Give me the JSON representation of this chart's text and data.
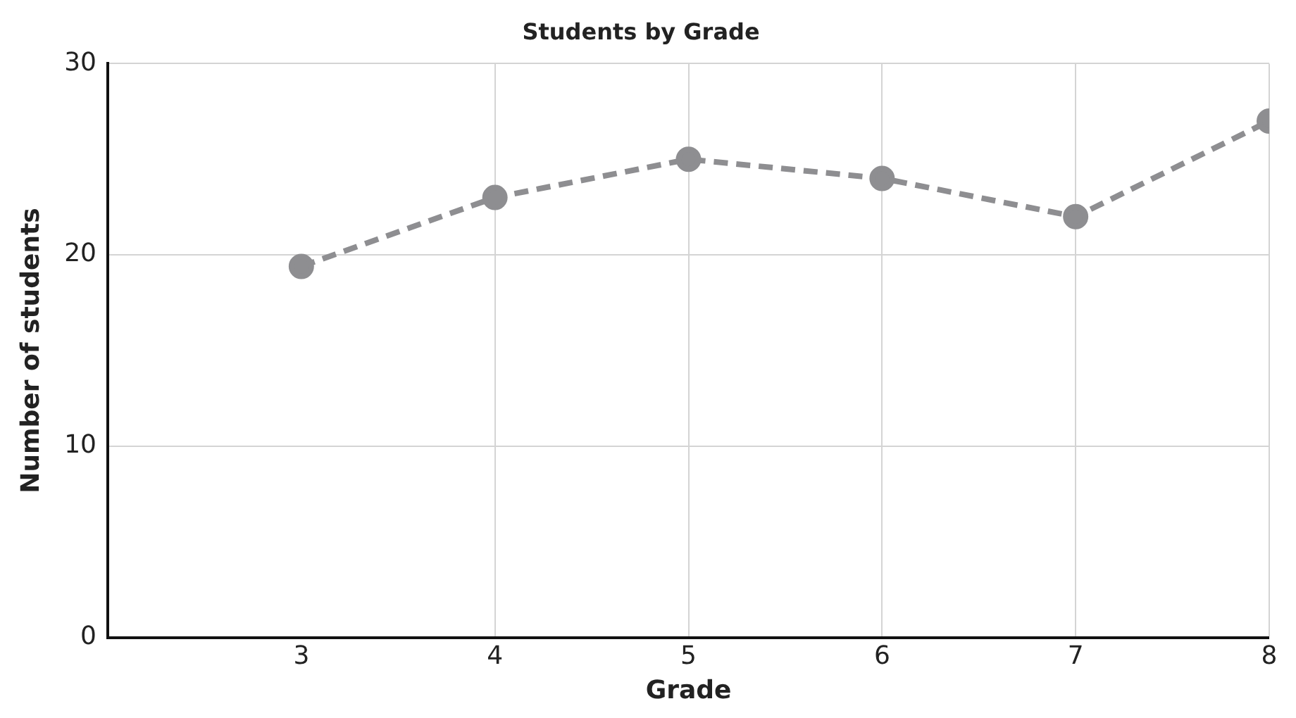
{
  "chart_data": {
    "type": "line",
    "title": "Students by Grade",
    "xlabel": "Grade",
    "ylabel": "Number of students",
    "x": [
      3,
      4,
      5,
      6,
      7,
      8
    ],
    "series": [
      {
        "color": "#8e8e91",
        "values": [
          19.4,
          23,
          25,
          24,
          22,
          27
        ]
      }
    ],
    "xlim": [
      2,
      8
    ],
    "xticks": [
      3,
      4,
      5,
      6,
      7,
      8
    ],
    "ylim": [
      0,
      30
    ],
    "yticks": [
      0,
      10,
      20,
      30
    ],
    "grid": true,
    "marker": "circle",
    "line_style": "dashed"
  }
}
